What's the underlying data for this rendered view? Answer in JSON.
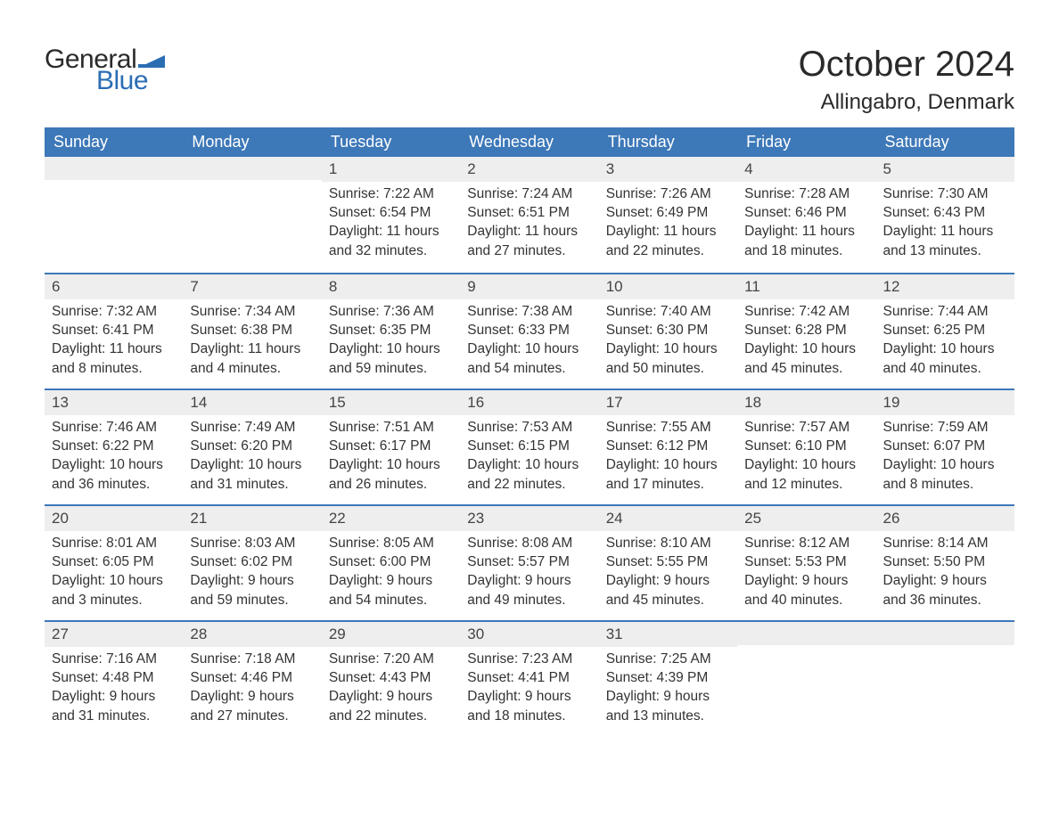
{
  "logo": {
    "text1": "General",
    "text2": "Blue",
    "flag_color": "#2a6db3"
  },
  "title": "October 2024",
  "location": "Allingabro, Denmark",
  "colors": {
    "header_bg": "#3d78b8",
    "header_text": "#ffffff",
    "daynum_bg": "#eeeeee",
    "border": "#3d78b8",
    "body_text": "#333333",
    "page_bg": "#ffffff"
  },
  "font": {
    "family": "Arial",
    "title_size": 40,
    "location_size": 24,
    "header_size": 18,
    "body_size": 15.5
  },
  "day_names": [
    "Sunday",
    "Monday",
    "Tuesday",
    "Wednesday",
    "Thursday",
    "Friday",
    "Saturday"
  ],
  "labels": {
    "sunrise": "Sunrise:",
    "sunset": "Sunset:",
    "daylight": "Daylight:"
  },
  "weeks": [
    [
      null,
      null,
      {
        "n": "1",
        "sunrise": "7:22 AM",
        "sunset": "6:54 PM",
        "daylight_l1": "11 hours",
        "daylight_l2": "and 32 minutes."
      },
      {
        "n": "2",
        "sunrise": "7:24 AM",
        "sunset": "6:51 PM",
        "daylight_l1": "11 hours",
        "daylight_l2": "and 27 minutes."
      },
      {
        "n": "3",
        "sunrise": "7:26 AM",
        "sunset": "6:49 PM",
        "daylight_l1": "11 hours",
        "daylight_l2": "and 22 minutes."
      },
      {
        "n": "4",
        "sunrise": "7:28 AM",
        "sunset": "6:46 PM",
        "daylight_l1": "11 hours",
        "daylight_l2": "and 18 minutes."
      },
      {
        "n": "5",
        "sunrise": "7:30 AM",
        "sunset": "6:43 PM",
        "daylight_l1": "11 hours",
        "daylight_l2": "and 13 minutes."
      }
    ],
    [
      {
        "n": "6",
        "sunrise": "7:32 AM",
        "sunset": "6:41 PM",
        "daylight_l1": "11 hours",
        "daylight_l2": "and 8 minutes."
      },
      {
        "n": "7",
        "sunrise": "7:34 AM",
        "sunset": "6:38 PM",
        "daylight_l1": "11 hours",
        "daylight_l2": "and 4 minutes."
      },
      {
        "n": "8",
        "sunrise": "7:36 AM",
        "sunset": "6:35 PM",
        "daylight_l1": "10 hours",
        "daylight_l2": "and 59 minutes."
      },
      {
        "n": "9",
        "sunrise": "7:38 AM",
        "sunset": "6:33 PM",
        "daylight_l1": "10 hours",
        "daylight_l2": "and 54 minutes."
      },
      {
        "n": "10",
        "sunrise": "7:40 AM",
        "sunset": "6:30 PM",
        "daylight_l1": "10 hours",
        "daylight_l2": "and 50 minutes."
      },
      {
        "n": "11",
        "sunrise": "7:42 AM",
        "sunset": "6:28 PM",
        "daylight_l1": "10 hours",
        "daylight_l2": "and 45 minutes."
      },
      {
        "n": "12",
        "sunrise": "7:44 AM",
        "sunset": "6:25 PM",
        "daylight_l1": "10 hours",
        "daylight_l2": "and 40 minutes."
      }
    ],
    [
      {
        "n": "13",
        "sunrise": "7:46 AM",
        "sunset": "6:22 PM",
        "daylight_l1": "10 hours",
        "daylight_l2": "and 36 minutes."
      },
      {
        "n": "14",
        "sunrise": "7:49 AM",
        "sunset": "6:20 PM",
        "daylight_l1": "10 hours",
        "daylight_l2": "and 31 minutes."
      },
      {
        "n": "15",
        "sunrise": "7:51 AM",
        "sunset": "6:17 PM",
        "daylight_l1": "10 hours",
        "daylight_l2": "and 26 minutes."
      },
      {
        "n": "16",
        "sunrise": "7:53 AM",
        "sunset": "6:15 PM",
        "daylight_l1": "10 hours",
        "daylight_l2": "and 22 minutes."
      },
      {
        "n": "17",
        "sunrise": "7:55 AM",
        "sunset": "6:12 PM",
        "daylight_l1": "10 hours",
        "daylight_l2": "and 17 minutes."
      },
      {
        "n": "18",
        "sunrise": "7:57 AM",
        "sunset": "6:10 PM",
        "daylight_l1": "10 hours",
        "daylight_l2": "and 12 minutes."
      },
      {
        "n": "19",
        "sunrise": "7:59 AM",
        "sunset": "6:07 PM",
        "daylight_l1": "10 hours",
        "daylight_l2": "and 8 minutes."
      }
    ],
    [
      {
        "n": "20",
        "sunrise": "8:01 AM",
        "sunset": "6:05 PM",
        "daylight_l1": "10 hours",
        "daylight_l2": "and 3 minutes."
      },
      {
        "n": "21",
        "sunrise": "8:03 AM",
        "sunset": "6:02 PM",
        "daylight_l1": "9 hours",
        "daylight_l2": "and 59 minutes."
      },
      {
        "n": "22",
        "sunrise": "8:05 AM",
        "sunset": "6:00 PM",
        "daylight_l1": "9 hours",
        "daylight_l2": "and 54 minutes."
      },
      {
        "n": "23",
        "sunrise": "8:08 AM",
        "sunset": "5:57 PM",
        "daylight_l1": "9 hours",
        "daylight_l2": "and 49 minutes."
      },
      {
        "n": "24",
        "sunrise": "8:10 AM",
        "sunset": "5:55 PM",
        "daylight_l1": "9 hours",
        "daylight_l2": "and 45 minutes."
      },
      {
        "n": "25",
        "sunrise": "8:12 AM",
        "sunset": "5:53 PM",
        "daylight_l1": "9 hours",
        "daylight_l2": "and 40 minutes."
      },
      {
        "n": "26",
        "sunrise": "8:14 AM",
        "sunset": "5:50 PM",
        "daylight_l1": "9 hours",
        "daylight_l2": "and 36 minutes."
      }
    ],
    [
      {
        "n": "27",
        "sunrise": "7:16 AM",
        "sunset": "4:48 PM",
        "daylight_l1": "9 hours",
        "daylight_l2": "and 31 minutes."
      },
      {
        "n": "28",
        "sunrise": "7:18 AM",
        "sunset": "4:46 PM",
        "daylight_l1": "9 hours",
        "daylight_l2": "and 27 minutes."
      },
      {
        "n": "29",
        "sunrise": "7:20 AM",
        "sunset": "4:43 PM",
        "daylight_l1": "9 hours",
        "daylight_l2": "and 22 minutes."
      },
      {
        "n": "30",
        "sunrise": "7:23 AM",
        "sunset": "4:41 PM",
        "daylight_l1": "9 hours",
        "daylight_l2": "and 18 minutes."
      },
      {
        "n": "31",
        "sunrise": "7:25 AM",
        "sunset": "4:39 PM",
        "daylight_l1": "9 hours",
        "daylight_l2": "and 13 minutes."
      },
      null,
      null
    ]
  ]
}
